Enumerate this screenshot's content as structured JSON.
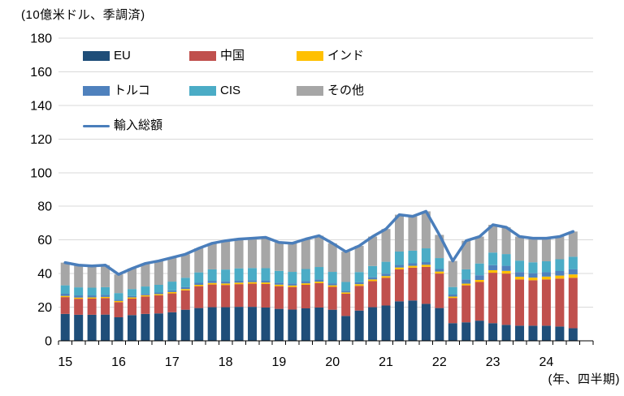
{
  "chart_data": {
    "type": "bar",
    "subtype": "stacked-bars-with-total-line",
    "title": "(10億米ドル、季調済)",
    "x_axis_note": "(年、四半期)",
    "grid": true,
    "legend_position": "top-left-inside",
    "ylim": [
      0,
      180
    ],
    "ytick_step": 20,
    "x_slots": 40,
    "x_year_labels": [
      "15",
      "16",
      "17",
      "18",
      "19",
      "20",
      "21",
      "22",
      "23",
      "24"
    ],
    "x": [
      "15Q1",
      "15Q2",
      "15Q3",
      "15Q4",
      "16Q1",
      "16Q2",
      "16Q3",
      "16Q4",
      "17Q1",
      "17Q2",
      "17Q3",
      "17Q4",
      "18Q1",
      "18Q2",
      "18Q3",
      "18Q4",
      "19Q1",
      "19Q2",
      "19Q3",
      "19Q4",
      "20Q1",
      "20Q2",
      "20Q3",
      "20Q4",
      "21Q1",
      "21Q2",
      "21Q3",
      "21Q4",
      "22Q1",
      "22Q2",
      "22Q3",
      "22Q4",
      "23Q1",
      "23Q2",
      "23Q3",
      "23Q4",
      "24Q1",
      "24Q2",
      "24Q3"
    ],
    "series": [
      {
        "key": "eu",
        "name": "EU",
        "color": "#1F4E79",
        "values": [
          16.0,
          15.5,
          15.5,
          15.6,
          14.0,
          15.3,
          16.0,
          16.3,
          17.0,
          18.5,
          19.5,
          20.0,
          20.0,
          20.2,
          20.2,
          19.8,
          19.0,
          18.6,
          19.3,
          19.8,
          18.5,
          14.8,
          18.0,
          20.0,
          21.0,
          23.5,
          24.0,
          22.0,
          19.5,
          10.5,
          11.0,
          12.0,
          10.5,
          9.5,
          9.0,
          9.0,
          9.0,
          8.5,
          7.5
        ]
      },
      {
        "key": "china",
        "name": "中国",
        "color": "#C0504D",
        "values": [
          10.0,
          9.5,
          9.6,
          9.8,
          9.0,
          9.8,
          10.4,
          10.8,
          11.2,
          11.5,
          13.0,
          13.5,
          13.2,
          13.5,
          13.8,
          14.0,
          13.5,
          13.4,
          14.0,
          14.5,
          13.6,
          13.2,
          14.7,
          15.5,
          16.5,
          19.0,
          19.5,
          22.0,
          20.5,
          15.0,
          22.0,
          23.0,
          30.0,
          30.5,
          27.5,
          27.0,
          27.5,
          28.5,
          30.0
        ]
      },
      {
        "key": "india",
        "name": "インド",
        "color": "#FFC000",
        "values": [
          0.7,
          0.7,
          0.7,
          0.7,
          0.7,
          0.7,
          0.7,
          0.7,
          0.8,
          0.8,
          0.8,
          0.9,
          0.9,
          0.9,
          0.9,
          0.9,
          0.9,
          0.9,
          0.9,
          0.9,
          0.9,
          0.8,
          1.0,
          1.0,
          1.0,
          1.1,
          1.1,
          1.2,
          1.2,
          0.8,
          1.0,
          1.2,
          1.5,
          1.6,
          1.6,
          1.6,
          1.7,
          1.8,
          2.0
        ]
      },
      {
        "key": "turkey",
        "name": "トルコ",
        "color": "#4F81BD",
        "values": [
          1.3,
          1.3,
          1.2,
          1.2,
          0.7,
          0.8,
          0.8,
          0.9,
          1.0,
          1.1,
          1.2,
          1.3,
          1.3,
          1.3,
          1.2,
          1.2,
          1.2,
          1.2,
          1.3,
          1.3,
          1.2,
          1.0,
          1.2,
          1.3,
          1.4,
          1.5,
          1.5,
          1.6,
          1.5,
          1.2,
          2.5,
          2.8,
          3.0,
          3.0,
          2.8,
          2.6,
          2.6,
          2.7,
          3.0
        ]
      },
      {
        "key": "cis",
        "name": "CIS",
        "color": "#4BACC6",
        "values": [
          5.0,
          4.8,
          4.6,
          4.6,
          4.0,
          4.2,
          4.4,
          4.6,
          5.2,
          5.6,
          6.2,
          6.8,
          7.0,
          7.2,
          7.2,
          7.3,
          7.0,
          6.9,
          7.2,
          7.4,
          6.8,
          5.2,
          6.0,
          6.7,
          7.1,
          8.0,
          7.5,
          8.2,
          6.5,
          4.5,
          6.0,
          7.0,
          7.5,
          7.0,
          6.8,
          6.5,
          6.5,
          7.0,
          7.5
        ]
      },
      {
        "key": "other",
        "name": "その他",
        "color": "#A6A6A6",
        "values": [
          13.5,
          13.2,
          12.9,
          13.1,
          11.1,
          12.2,
          13.7,
          14.2,
          14.3,
          14.0,
          14.3,
          15.5,
          17.1,
          17.4,
          17.7,
          18.3,
          16.9,
          17.0,
          17.8,
          18.6,
          17.0,
          18.0,
          15.6,
          17.5,
          19.5,
          21.9,
          20.4,
          22.0,
          13.8,
          15.5,
          17.0,
          16.0,
          16.5,
          15.9,
          14.3,
          14.3,
          13.7,
          13.5,
          15.0
        ]
      }
    ],
    "line": {
      "key": "total",
      "name": "輸入総額",
      "color": "#4A7EBB",
      "values": [
        46.5,
        45.0,
        44.5,
        45.0,
        39.5,
        43.0,
        46.0,
        47.5,
        49.5,
        51.5,
        55.0,
        58.0,
        59.5,
        60.5,
        61.0,
        61.5,
        58.5,
        58.0,
        60.5,
        62.5,
        58.0,
        53.0,
        56.5,
        62.0,
        66.5,
        75.0,
        74.0,
        77.0,
        63.0,
        47.5,
        59.5,
        62.0,
        69.0,
        67.5,
        62.0,
        61.0,
        61.0,
        62.0,
        65.0
      ]
    },
    "colors": {
      "gridline": "#D9D9D9",
      "axis": "#000000",
      "text": "#000000",
      "background": "#FFFFFF"
    }
  }
}
